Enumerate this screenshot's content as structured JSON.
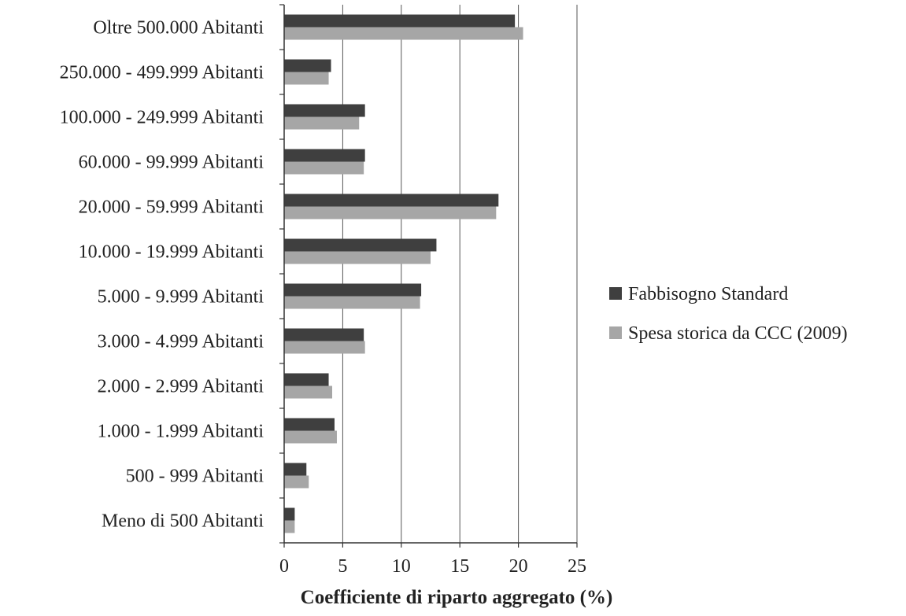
{
  "chart_data": {
    "type": "bar",
    "orientation": "horizontal",
    "title": "",
    "xlabel": "Coefficiente di riparto aggregato (%)",
    "ylabel": "",
    "xlim": [
      0,
      25
    ],
    "xticks": [
      0,
      5,
      10,
      15,
      20,
      25
    ],
    "grid": true,
    "legend_position": "right",
    "categories": [
      "Oltre 500.000 Abitanti",
      "250.000 - 499.999 Abitanti",
      "100.000 - 249.999 Abitanti",
      "60.000 - 99.999 Abitanti",
      "20.000 - 59.999 Abitanti",
      "10.000 - 19.999 Abitanti",
      "5.000 - 9.999 Abitanti",
      "3.000 - 4.999 Abitanti",
      "2.000 - 2.999 Abitanti",
      "1.000 - 1.999 Abitanti",
      "500 - 999 Abitanti",
      "Meno di 500 Abitanti"
    ],
    "series": [
      {
        "name": "Fabbisogno Standard",
        "color": "#3f3f3f",
        "values": [
          19.7,
          4.0,
          6.9,
          6.9,
          18.3,
          13.0,
          11.7,
          6.8,
          3.8,
          4.3,
          1.9,
          0.9
        ]
      },
      {
        "name": "Spesa storica da CCC (2009)",
        "color": "#a6a6a6",
        "values": [
          20.4,
          3.8,
          6.4,
          6.8,
          18.1,
          12.5,
          11.6,
          6.9,
          4.1,
          4.5,
          2.1,
          0.9
        ]
      }
    ]
  }
}
